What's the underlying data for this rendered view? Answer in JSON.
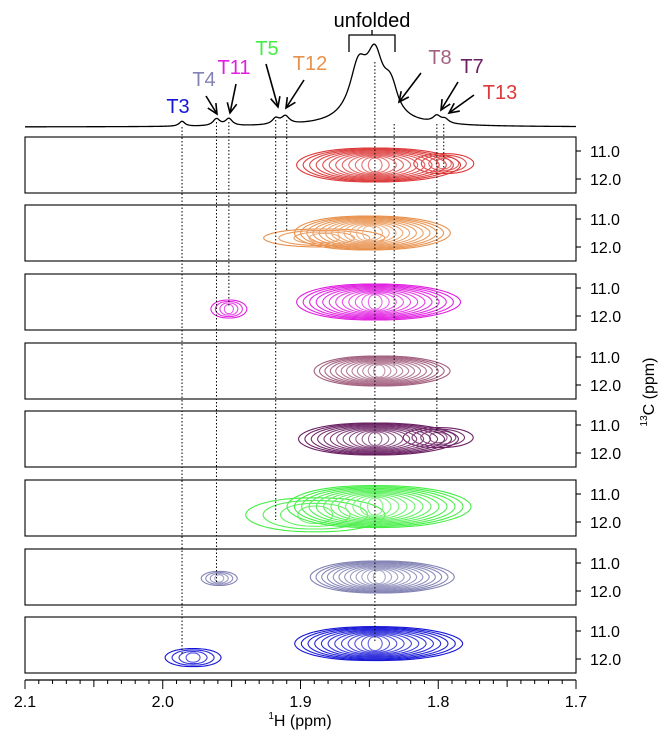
{
  "chart_data": {
    "type": "contour",
    "x_axis": {
      "label": "H (ppm)",
      "label_superscript": "1",
      "range": [
        2.1,
        1.7
      ],
      "reversed": true,
      "ticks": [
        2.1,
        2.0,
        1.9,
        1.8,
        1.7
      ],
      "tick_labels": [
        "2.1",
        "2.0",
        "1.9",
        "1.8",
        "1.7"
      ]
    },
    "y_axis": {
      "label": "C (ppm)",
      "label_superscript": "13",
      "range": [
        10.5,
        12.5
      ],
      "ticks": [
        11.0,
        12.0
      ],
      "tick_labels": [
        "11.0",
        "12.0"
      ]
    },
    "unfolded_label": "unfolded",
    "peaks_1d": [
      {
        "name": "T3",
        "shift": 1.986,
        "color": "#1515d6"
      },
      {
        "name": "T4",
        "shift": 1.959,
        "color": "#8282b4"
      },
      {
        "name": "T11",
        "shift": 1.952,
        "color": "#e01ee0"
      },
      {
        "name": "T5",
        "shift": 1.918,
        "color": "#44ee44"
      },
      {
        "name": "T12",
        "shift": 1.91,
        "color": "#e8914d"
      },
      {
        "name": "T8",
        "shift": 1.832,
        "color": "#a3607f"
      },
      {
        "name": "T7",
        "shift": 1.801,
        "color": "#6a1f62"
      },
      {
        "name": "T13",
        "shift": 1.796,
        "color": "#dc3a3a"
      }
    ],
    "unfolded_shift": 1.846,
    "panels": [
      {
        "name": "T13",
        "color": "#dc3a3a",
        "main": {
          "x": 1.846,
          "y": 11.5
        },
        "minor": {
          "x": 1.796,
          "y": 11.45
        }
      },
      {
        "name": "T12",
        "color": "#e8914d",
        "main": {
          "x": 1.846,
          "y": 11.5
        },
        "minor": {
          "x": 1.905,
          "y": 11.75
        }
      },
      {
        "name": "T11",
        "color": "#e01ee0",
        "main": {
          "x": 1.846,
          "y": 11.5
        },
        "minor": {
          "x": 1.952,
          "y": 11.75
        }
      },
      {
        "name": "T8",
        "color": "#a3607f",
        "main": {
          "x": 1.843,
          "y": 11.5
        },
        "minor": null
      },
      {
        "name": "T7",
        "color": "#6a1f62",
        "main": {
          "x": 1.846,
          "y": 11.5
        },
        "minor": {
          "x": 1.8,
          "y": 11.45
        }
      },
      {
        "name": "T5",
        "color": "#44ee44",
        "main": {
          "x": 1.846,
          "y": 11.45
        },
        "minor": {
          "x": 1.918,
          "y": 12.1
        }
      },
      {
        "name": "T4",
        "color": "#8282b4",
        "main": {
          "x": 1.843,
          "y": 11.5
        },
        "minor": {
          "x": 1.959,
          "y": 11.55
        }
      },
      {
        "name": "T3",
        "color": "#1515d6",
        "main": {
          "x": 1.846,
          "y": 11.45
        },
        "minor": {
          "x": 1.978,
          "y": 11.95
        }
      }
    ]
  }
}
